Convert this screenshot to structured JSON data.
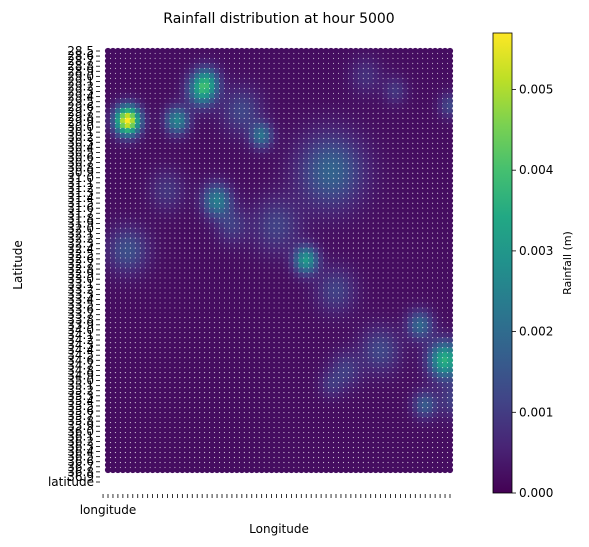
{
  "chart_data": {
    "type": "scatter",
    "title": "Rainfall distribution at hour 5000",
    "xlabel": "Longitude",
    "ylabel": "Latitude",
    "colorbar": {
      "label": "Rainfall (m)",
      "colormap": "viridis",
      "range": [
        0.0,
        0.0057
      ],
      "ticks": [
        "0.000",
        "0.001",
        "0.002",
        "0.003",
        "0.004",
        "0.005"
      ],
      "tick_values": [
        0.0,
        0.001,
        0.002,
        0.003,
        0.004,
        0.005
      ]
    },
    "grid": false,
    "legend": "none",
    "x_categories_count": 70,
    "y_categories_count": 85,
    "x_first_tick_label": "longitude",
    "y_first_tick_label": "latitude",
    "y_tick_labels_bottom_to_top": [
      "latitude",
      "36.9",
      "36.8",
      "36.7",
      "36.6",
      "36.5",
      "36.4",
      "36.3",
      "36.2",
      "36.1",
      "36.0",
      "35.9",
      "35.8",
      "35.7",
      "35.6",
      "35.5",
      "35.4",
      "35.3",
      "35.2",
      "35.1",
      "35.0",
      "34.9",
      "34.8",
      "34.7",
      "34.6",
      "34.5",
      "34.4",
      "34.3",
      "34.2",
      "34.1",
      "34.0",
      "33.9",
      "33.8",
      "33.7",
      "33.6",
      "33.5",
      "33.4",
      "33.3",
      "33.2",
      "33.1",
      "33.0",
      "32.9",
      "32.8",
      "32.7",
      "32.6",
      "32.5",
      "32.4",
      "32.3",
      "32.2",
      "32.1",
      "32.0",
      "31.9",
      "31.8",
      "31.7",
      "31.6",
      "31.5",
      "31.4",
      "31.3",
      "31.2",
      "31.1",
      "31.0",
      "30.9",
      "30.8",
      "30.7",
      "30.6",
      "30.5",
      "30.4",
      "30.3",
      "30.2",
      "30.1",
      "30.0",
      "29.9",
      "29.8",
      "29.7",
      "29.6",
      "29.5",
      "29.4",
      "29.3",
      "29.2",
      "29.1",
      "29.0",
      "28.9",
      "28.8",
      "28.7",
      "28.6",
      "28.5"
    ],
    "hotspots": [
      {
        "lon_index": 4,
        "lat_index": 14,
        "peak": 0.0056,
        "spread": 1.6
      },
      {
        "lon_index": 14,
        "lat_index": 14,
        "peak": 0.0024,
        "spread": 1.5
      },
      {
        "lon_index": 19,
        "lat_index": 8,
        "peak": 0.0026,
        "spread": 1.8
      },
      {
        "lon_index": 20,
        "lat_index": 6,
        "peak": 0.0018,
        "spread": 1.6
      },
      {
        "lon_index": 31,
        "lat_index": 17,
        "peak": 0.0019,
        "spread": 1.4
      },
      {
        "lon_index": 22,
        "lat_index": 30,
        "peak": 0.0022,
        "spread": 1.8
      },
      {
        "lon_index": 4,
        "lat_index": 40,
        "peak": 0.0012,
        "spread": 2.5
      },
      {
        "lon_index": 40,
        "lat_index": 42,
        "peak": 0.0028,
        "spread": 1.5
      },
      {
        "lon_index": 45,
        "lat_index": 24,
        "peak": 0.0016,
        "spread": 4.0
      },
      {
        "lon_index": 68,
        "lat_index": 62,
        "peak": 0.0034,
        "spread": 2.0
      },
      {
        "lon_index": 63,
        "lat_index": 55,
        "peak": 0.0017,
        "spread": 1.6
      },
      {
        "lon_index": 64,
        "lat_index": 71,
        "peak": 0.0014,
        "spread": 1.5
      },
      {
        "lon_index": 55,
        "lat_index": 60,
        "peak": 0.001,
        "spread": 2.5
      },
      {
        "lon_index": 34,
        "lat_index": 35,
        "peak": 0.0009,
        "spread": 3.0
      },
      {
        "lon_index": 27,
        "lat_index": 12,
        "peak": 0.001,
        "spread": 2.5
      },
      {
        "lon_index": 58,
        "lat_index": 8,
        "peak": 0.0007,
        "spread": 1.5
      },
      {
        "lon_index": 69,
        "lat_index": 11,
        "peak": 0.001,
        "spread": 1.4
      },
      {
        "lon_index": 46,
        "lat_index": 48,
        "peak": 0.0009,
        "spread": 2.5
      },
      {
        "lon_index": 48,
        "lat_index": 64,
        "peak": 0.0008,
        "spread": 2.0
      },
      {
        "lon_index": 25,
        "lat_index": 35,
        "peak": 0.0008,
        "spread": 2.0
      },
      {
        "lon_index": 12,
        "lat_index": 28,
        "peak": 0.0007,
        "spread": 2.2
      },
      {
        "lon_index": 52,
        "lat_index": 5,
        "peak": 0.0006,
        "spread": 2.0
      },
      {
        "lon_index": 45,
        "lat_index": 67,
        "peak": 0.0006,
        "spread": 1.5
      },
      {
        "lon_index": 70,
        "lat_index": 70,
        "peak": 0.0009,
        "spread": 2.0
      }
    ],
    "background_level": 0.0002
  }
}
